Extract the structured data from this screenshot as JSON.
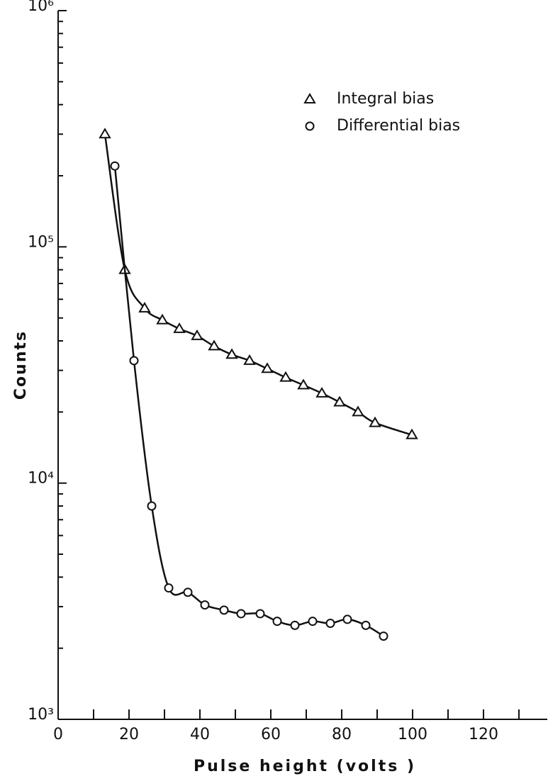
{
  "chart_data": {
    "type": "scatter",
    "xlabel": "Pulse height (volts )",
    "ylabel": "Counts",
    "log_y": true,
    "xlim": [
      0,
      138
    ],
    "ylim": [
      1000,
      1000000
    ],
    "xticks": [
      0,
      20,
      40,
      60,
      80,
      100,
      120
    ],
    "xminorticks": [
      10,
      30,
      50,
      70,
      90,
      110,
      130
    ],
    "yticks": [
      {
        "value": 1000,
        "label": "10³"
      },
      {
        "value": 10000,
        "label": "10⁴"
      },
      {
        "value": 100000,
        "label": "10⁵"
      },
      {
        "value": 1000000,
        "label": "10⁶"
      }
    ],
    "yminorticks": [
      2000,
      3000,
      4000,
      5000,
      6000,
      7000,
      8000,
      9000,
      20000,
      30000,
      40000,
      50000,
      60000,
      70000,
      80000,
      90000,
      200000,
      300000,
      400000,
      500000,
      600000,
      700000,
      800000,
      900000
    ],
    "legend": "upper right",
    "series": [
      {
        "name": "Integral  bias",
        "marker": "triangle",
        "color": "#111111",
        "x": [
          13.2,
          18.8,
          24.4,
          29.4,
          34.2,
          39.2,
          44,
          49,
          54,
          59,
          64.2,
          69.2,
          74.4,
          79.4,
          84.6,
          89.4,
          99.8
        ],
        "values": [
          300000,
          80000,
          55000,
          49000,
          45000,
          42000,
          38000,
          35000,
          33000,
          30500,
          28000,
          26000,
          24000,
          22000,
          20000,
          18000,
          16000
        ]
      },
      {
        "name": "Differential bias",
        "marker": "circle",
        "color": "#111111",
        "x": [
          16,
          21.4,
          26.4,
          31.2,
          36.6,
          41.4,
          46.8,
          51.6,
          57,
          61.8,
          66.8,
          71.8,
          76.8,
          81.6,
          86.8,
          91.8
        ],
        "values": [
          220000,
          33000,
          8000,
          3600,
          3450,
          3050,
          2900,
          2800,
          2800,
          2600,
          2500,
          2600,
          2550,
          2650,
          2500,
          2250
        ]
      }
    ]
  }
}
